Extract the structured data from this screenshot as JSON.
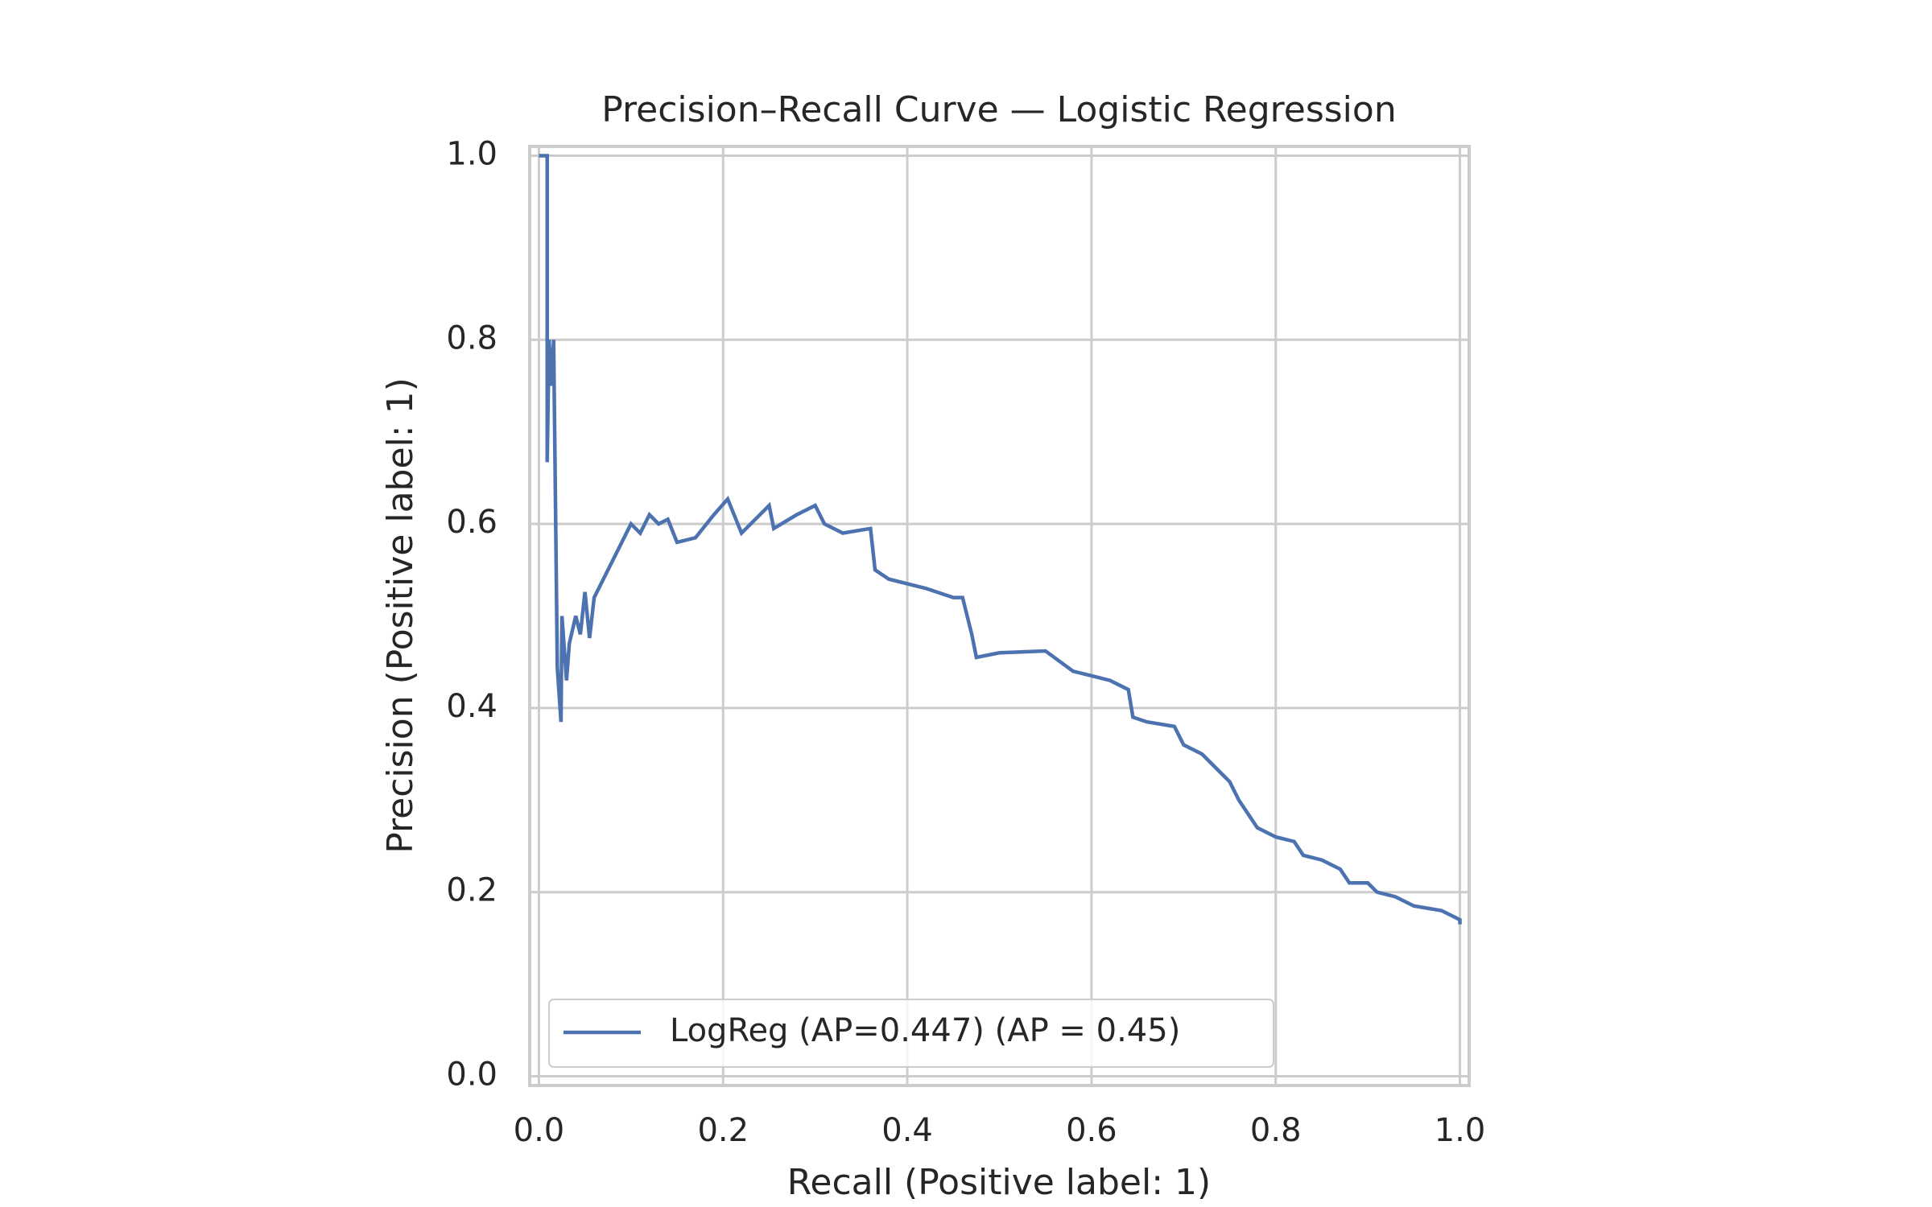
{
  "chart_data": {
    "type": "line",
    "title": "Precision–Recall Curve — Logistic Regression",
    "xlabel": "Recall (Positive label: 1)",
    "ylabel": "Precision (Positive label: 1)",
    "xlim": [
      -0.01,
      1.01
    ],
    "ylim": [
      -0.01,
      1.01
    ],
    "xticks": [
      {
        "value": 0,
        "label": "0.0"
      },
      0.2,
      0.4,
      0.6,
      0.8,
      {
        "value": 1,
        "label": "1.0"
      }
    ],
    "yticks": [
      {
        "value": 0,
        "label": "0.0"
      },
      0.2,
      0.4,
      0.6,
      0.8,
      {
        "value": 1,
        "label": "1.0"
      }
    ],
    "grid": true,
    "legend": "lower left",
    "series": [
      {
        "name": "LogReg (AP=0.447) (AP = 0.45)",
        "color": "#4c72b0",
        "x": [
          0,
          0.009,
          0.009,
          0.011,
          0.014,
          0.016,
          0.02,
          0.024,
          0.025,
          0.03,
          0.033,
          0.04,
          0.045,
          0.05,
          0.055,
          0.06,
          0.07,
          0.08,
          0.09,
          0.1,
          0.11,
          0.12,
          0.13,
          0.14,
          0.15,
          0.17,
          0.19,
          0.205,
          0.22,
          0.25,
          0.255,
          0.28,
          0.3,
          0.31,
          0.33,
          0.36,
          0.365,
          0.38,
          0.42,
          0.45,
          0.46,
          0.47,
          0.475,
          0.5,
          0.55,
          0.58,
          0.6,
          0.62,
          0.64,
          0.645,
          0.66,
          0.69,
          0.7,
          0.72,
          0.75,
          0.76,
          0.78,
          0.8,
          0.82,
          0.83,
          0.85,
          0.87,
          0.88,
          0.9,
          0.91,
          0.93,
          0.95,
          0.98,
          1.0,
          1.0
        ],
        "values": [
          1.0,
          1.0,
          0.667,
          0.8,
          0.75,
          0.8,
          0.444,
          0.385,
          0.5,
          0.43,
          0.47,
          0.5,
          0.48,
          0.526,
          0.476,
          0.52,
          0.54,
          0.56,
          0.58,
          0.6,
          0.59,
          0.61,
          0.6,
          0.605,
          0.58,
          0.585,
          0.61,
          0.627,
          0.59,
          0.62,
          0.595,
          0.61,
          0.62,
          0.6,
          0.59,
          0.595,
          0.55,
          0.54,
          0.53,
          0.52,
          0.52,
          0.48,
          0.455,
          0.46,
          0.462,
          0.44,
          0.435,
          0.43,
          0.42,
          0.39,
          0.385,
          0.38,
          0.36,
          0.35,
          0.32,
          0.3,
          0.27,
          0.26,
          0.255,
          0.24,
          0.235,
          0.225,
          0.21,
          0.21,
          0.2,
          0.195,
          0.185,
          0.18,
          0.17,
          0.165
        ]
      }
    ]
  }
}
